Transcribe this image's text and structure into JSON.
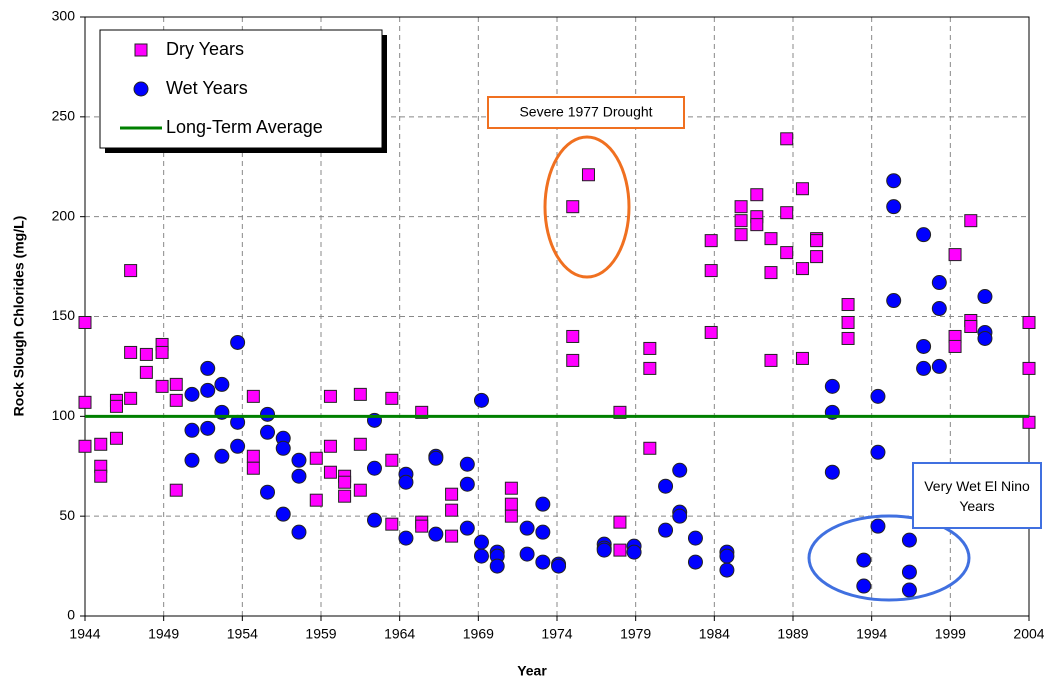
{
  "chart_data": {
    "type": "scatter",
    "x_label": "Year",
    "y_label": "Rock Slough Chlorides (mg/L)",
    "xlim": [
      1944,
      2004
    ],
    "xticks": [
      1944,
      1949,
      1954,
      1959,
      1964,
      1969,
      1974,
      1979,
      1984,
      1989,
      1994,
      1999,
      2004
    ],
    "ylim": [
      0,
      300
    ],
    "yticks": [
      0,
      50,
      100,
      150,
      200,
      250,
      300
    ],
    "grid": true,
    "legend_position": "upper left",
    "annotations": [
      {
        "text": "Severe 1977 Drought",
        "color": "#f07020"
      },
      {
        "text": "Very Wet El Nino Years",
        "color": "#4070e0"
      }
    ],
    "series": [
      {
        "name": "Dry Years",
        "color": "#ff00ff",
        "marker": "square",
        "x": [
          1944.0,
          1944.0,
          1944.0,
          1945.0,
          1945.0,
          1945.0,
          1946.0,
          1946.0,
          1946.0,
          1946.9,
          1946.9,
          1946.9,
          1947.9,
          1947.9,
          1948.9,
          1948.9,
          1948.9,
          1949.8,
          1949.8,
          1949.8,
          1954.7,
          1954.7,
          1954.7,
          1958.7,
          1958.7,
          1959.6,
          1959.6,
          1959.6,
          1960.5,
          1960.5,
          1960.5,
          1961.5,
          1961.5,
          1961.5,
          1963.5,
          1963.5,
          1963.5,
          1965.4,
          1965.4,
          1965.4,
          1967.3,
          1967.3,
          1967.3,
          1971.1,
          1971.1,
          1971.1,
          1975.0,
          1975.0,
          1975.0,
          1976.0,
          1978.0,
          1978.0,
          1978.0,
          1979.9,
          1979.9,
          1979.9,
          1983.8,
          1983.8,
          1983.8,
          1985.7,
          1985.7,
          1985.7,
          1986.7,
          1986.7,
          1986.7,
          1987.6,
          1987.6,
          1987.6,
          1988.6,
          1988.6,
          1988.6,
          1989.6,
          1989.6,
          1989.6,
          1990.5,
          1990.5,
          1990.5,
          1992.5,
          1992.5,
          1992.5,
          1999.3,
          1999.3,
          1999.3,
          2000.3,
          2000.3,
          2000.3,
          2004.0,
          2004.0,
          2004.0
        ],
        "values": [
          147,
          107,
          85,
          86,
          75,
          70,
          108,
          105,
          89,
          173,
          132,
          109,
          131,
          122,
          136,
          132,
          115,
          116,
          108,
          63,
          110,
          80,
          74,
          79,
          58,
          110,
          85,
          72,
          70,
          67,
          60,
          111,
          86,
          63,
          109,
          78,
          46,
          102,
          47,
          45,
          61,
          53,
          40,
          64,
          56,
          50,
          205,
          140,
          128,
          221,
          102,
          47,
          33,
          134,
          124,
          84,
          188,
          173,
          142,
          205,
          198,
          191,
          211,
          200,
          196,
          189,
          172,
          128,
          239,
          202,
          182,
          214,
          174,
          129,
          189,
          188,
          180,
          156,
          147,
          139,
          181,
          140,
          135,
          198,
          148,
          145,
          147,
          124,
          97
        ]
      },
      {
        "name": "Wet Years",
        "color": "#0000ff",
        "marker": "circle",
        "x": [
          1950.8,
          1950.8,
          1950.8,
          1951.8,
          1951.8,
          1951.8,
          1952.7,
          1952.7,
          1952.7,
          1953.7,
          1953.7,
          1953.7,
          1955.6,
          1955.6,
          1955.6,
          1956.6,
          1956.6,
          1956.6,
          1957.6,
          1957.6,
          1957.6,
          1962.4,
          1962.4,
          1962.4,
          1964.4,
          1964.4,
          1964.4,
          1966.3,
          1966.3,
          1966.3,
          1968.3,
          1968.3,
          1968.3,
          1969.2,
          1969.2,
          1969.2,
          1970.2,
          1970.2,
          1970.2,
          1972.1,
          1972.1,
          1973.1,
          1973.1,
          1973.1,
          1974.1,
          1974.1,
          1977.0,
          1977.0,
          1977.0,
          1978.9,
          1978.9,
          1980.9,
          1980.9,
          1981.8,
          1981.8,
          1981.8,
          1982.8,
          1982.8,
          1984.8,
          1984.8,
          1984.8,
          1991.5,
          1991.5,
          1991.5,
          1993.5,
          1993.5,
          1994.4,
          1994.4,
          1994.4,
          1995.4,
          1995.4,
          1995.4,
          1996.4,
          1996.4,
          1996.4,
          1997.3,
          1997.3,
          1997.3,
          1998.3,
          1998.3,
          1998.3,
          2001.2,
          2001.2,
          2001.2
        ],
        "values": [
          111,
          93,
          78,
          124,
          113,
          94,
          116,
          102,
          80,
          137,
          97,
          85,
          101,
          92,
          62,
          89,
          84,
          51,
          78,
          70,
          42,
          98,
          74,
          48,
          71,
          67,
          39,
          80,
          79,
          41,
          76,
          66,
          44,
          108,
          37,
          30,
          32,
          30,
          25,
          44,
          31,
          56,
          42,
          27,
          26,
          25,
          36,
          34,
          33,
          35,
          32,
          65,
          43,
          73,
          52,
          50,
          39,
          27,
          32,
          30,
          23,
          115,
          102,
          72,
          28,
          15,
          110,
          82,
          45,
          218,
          205,
          158,
          38,
          22,
          13,
          191,
          135,
          124,
          167,
          154,
          125,
          160,
          142,
          139
        ]
      },
      {
        "name": "Long-Term Average",
        "color": "#008000",
        "marker": "line",
        "x": [
          1944,
          2004
        ],
        "values": [
          100,
          100
        ]
      }
    ]
  }
}
